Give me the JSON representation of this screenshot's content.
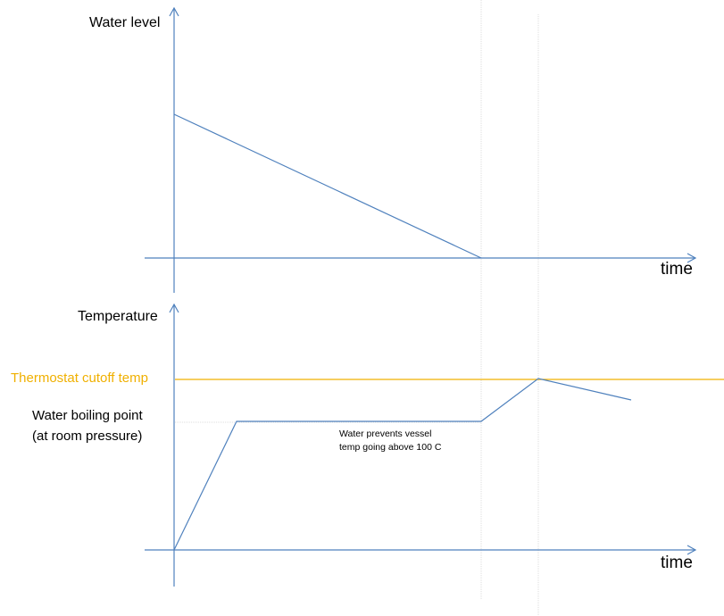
{
  "top_plot": {
    "y_label": "Water level",
    "x_label": "time"
  },
  "bottom_plot": {
    "y_label": "Temperature",
    "x_label": "time",
    "thermostat_label": "Thermostat cutoff temp",
    "boiling_label_line1": "Water boiling point",
    "boiling_label_line2": "(at room pressure)",
    "annotation_line1": "Water prevents vessel",
    "annotation_line2": "temp going above 100 C"
  },
  "colors": {
    "axis": "#4f81bd",
    "curve": "#4f81bd",
    "thermostat": "#f0b000",
    "guide": "#d9d9d9",
    "text": "#000000"
  }
}
